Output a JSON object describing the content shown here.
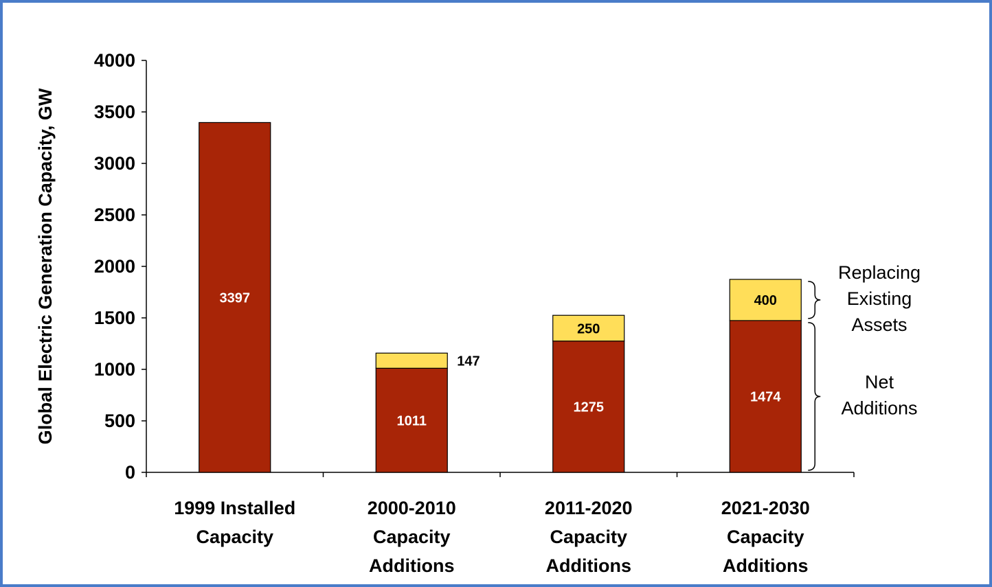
{
  "chart_data": {
    "type": "stacked_bar",
    "y_label": "Global Electric Generation Capacity, GW",
    "categories": [
      "1999 Installed\nCapacity",
      "2000-2010\nCapacity\nAdditions",
      "2011-2020\nCapacity\nAdditions",
      "2021-2030\nCapacity\nAdditions"
    ],
    "series": [
      {
        "name": "Net\nAdditions",
        "color": "#a82507",
        "label_color": "#ffffff",
        "values": [
          3397,
          1011,
          1275,
          1474
        ]
      },
      {
        "name": "Replacing\nExisting\nAssets",
        "color": "#ffde59",
        "label_color": "#000000",
        "values": [
          null,
          147,
          250,
          400
        ]
      }
    ],
    "ylim": [
      0,
      4000
    ],
    "yticks": [
      0,
      500,
      1000,
      1500,
      2000,
      2500,
      3000,
      3500,
      4000
    ],
    "grid": false
  }
}
